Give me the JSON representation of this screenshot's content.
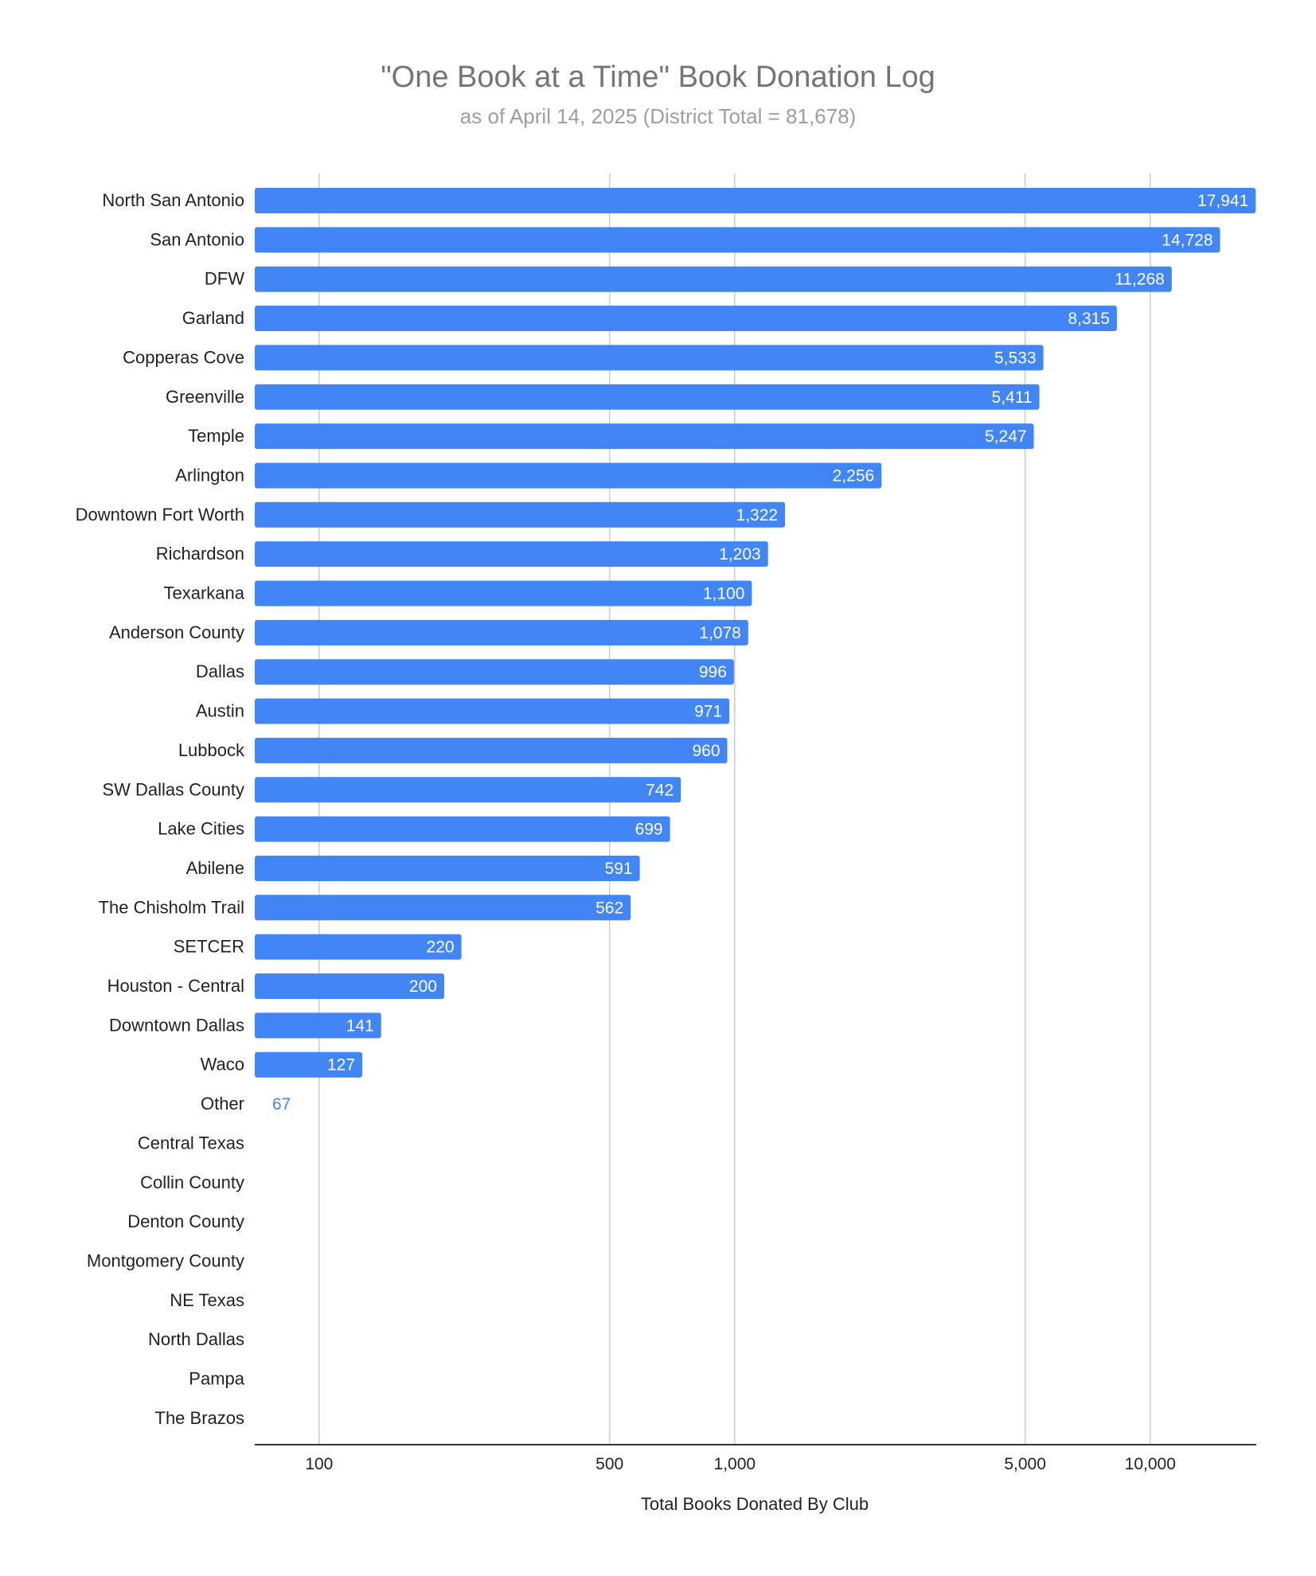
{
  "chart_data": {
    "type": "bar",
    "orientation": "horizontal",
    "title": "\"One Book at a Time\" Book Donation Log",
    "subtitle": "as of April 14, 2025 (District Total = 81,678)",
    "xlabel": "Total Books Donated By Club",
    "ylabel": "",
    "x_scale": "log",
    "xlim": [
      70,
      18000
    ],
    "grid": true,
    "legend": "none",
    "ticks": [
      {
        "value": 100,
        "label": "100"
      },
      {
        "value": 500,
        "label": "500"
      },
      {
        "value": 1000,
        "label": "1,000"
      },
      {
        "value": 5000,
        "label": "5,000"
      },
      {
        "value": 10000,
        "label": "10,000"
      }
    ],
    "categories": [
      "North San Antonio",
      "San Antonio",
      "DFW",
      "Garland",
      "Copperas Cove",
      "Greenville",
      "Temple",
      "Arlington",
      "Downtown Fort Worth",
      "Richardson",
      "Texarkana",
      "Anderson County",
      "Dallas",
      "Austin",
      "Lubbock",
      "SW Dallas County",
      "Lake Cities",
      "Abilene",
      "The Chisholm Trail",
      "SETCER",
      "Houston - Central",
      "Downtown Dallas",
      "Waco",
      "Other",
      "Central Texas",
      "Collin County",
      "Denton County",
      "Montgomery County",
      "NE Texas",
      "North Dallas",
      "Pampa",
      "The Brazos"
    ],
    "values": [
      17941,
      14728,
      11268,
      8315,
      5533,
      5411,
      5247,
      2256,
      1322,
      1203,
      1100,
      1078,
      996,
      971,
      960,
      742,
      699,
      591,
      562,
      220,
      200,
      141,
      127,
      67,
      null,
      null,
      null,
      null,
      null,
      null,
      null,
      null
    ],
    "value_labels": [
      "17,941",
      "14,728",
      "11,268",
      "8,315",
      "5,533",
      "5,411",
      "5,247",
      "2,256",
      "1,322",
      "1,203",
      "1,100",
      "1,078",
      "996",
      "971",
      "960",
      "742",
      "699",
      "591",
      "562",
      "220",
      "200",
      "141",
      "127",
      "67",
      "",
      "",
      "",
      "",
      "",
      "",
      "",
      ""
    ],
    "colors": {
      "bar": "#4285f4",
      "label_inside": "#ffffff",
      "label_outside": "#4285f4",
      "grid": "#cccccc",
      "axis": "#333333",
      "text": "#222222"
    }
  }
}
